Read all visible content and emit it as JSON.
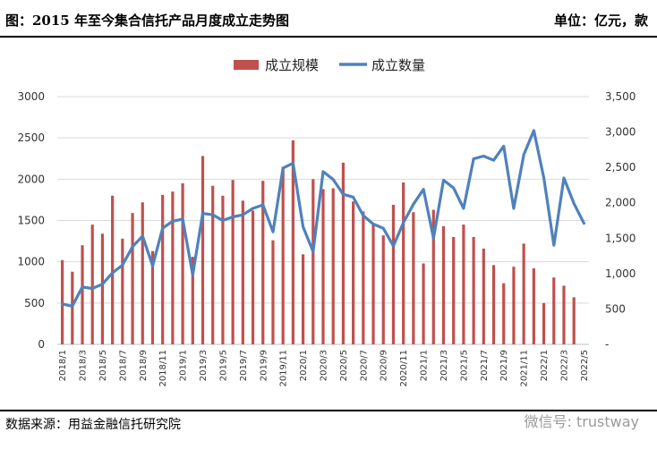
{
  "header": {
    "title": "图：2015 年至今集合信托产品月度成立走势图",
    "unit": "单位：亿元，款"
  },
  "footer": {
    "source": "数据来源：用益金融信托研究院",
    "watermark": "微信号: trustway"
  },
  "colors": {
    "bar": "#c0504d",
    "line": "#4f81bd",
    "grid": "#d9d9d9"
  },
  "chart_data": {
    "type": "bar",
    "legend": [
      "成立规模",
      "成立数量"
    ],
    "legend_position": "top",
    "x": [
      "2018/1",
      "2018/2",
      "2018/3",
      "2018/4",
      "2018/5",
      "2018/6",
      "2018/7",
      "2018/8",
      "2018/9",
      "2018/10",
      "2018/11",
      "2018/12",
      "2019/1",
      "2019/2",
      "2019/3",
      "2019/4",
      "2019/5",
      "2019/6",
      "2019/7",
      "2019/8",
      "2019/9",
      "2019/10",
      "2019/11",
      "2019/12",
      "2020/1",
      "2020/2",
      "2020/3",
      "2020/4",
      "2020/5",
      "2020/6",
      "2020/7",
      "2020/8",
      "2020/9",
      "2020/10",
      "2020/11",
      "2020/12",
      "2021/1",
      "2021/2",
      "2021/3",
      "2021/4",
      "2021/5",
      "2021/6",
      "2021/7",
      "2021/8",
      "2021/9",
      "2021/10",
      "2021/11",
      "2021/12",
      "2022/1",
      "2022/2",
      "2022/3",
      "2022/4",
      "2022/5"
    ],
    "x_tick_labels": [
      "2018/1",
      "2018/3",
      "2018/5",
      "2018/7",
      "2018/9",
      "2018/11",
      "2019/1",
      "2019/3",
      "2019/5",
      "2019/7",
      "2019/9",
      "2019/11",
      "2020/1",
      "2020/3",
      "2020/5",
      "2020/7",
      "2020/9",
      "2020/11",
      "2021/1",
      "2021/3",
      "2021/5",
      "2021/7",
      "2021/9",
      "2021/11",
      "2022/1",
      "2022/3",
      "2022/5"
    ],
    "y_left": {
      "min": 0,
      "max": 3000,
      "ticks": [
        "0",
        "500",
        "1000",
        "1500",
        "2000",
        "2500",
        "3000"
      ]
    },
    "y_right": {
      "min": 0,
      "max": 3500,
      "ticks": [
        "-",
        "500",
        "1,000",
        "1,500",
        "2,000",
        "2,500",
        "3,000",
        "3,500"
      ]
    },
    "grid": true,
    "series": [
      {
        "name": "成立规模",
        "type": "bar",
        "axis": "left",
        "values": [
          1020,
          880,
          1200,
          1450,
          1340,
          1800,
          1280,
          1590,
          1720,
          1130,
          1810,
          1850,
          1950,
          1060,
          2280,
          1920,
          1800,
          1990,
          1740,
          1620,
          1980,
          1260,
          2150,
          2470,
          1090,
          2000,
          1880,
          1890,
          2200,
          1730,
          1610,
          1470,
          1320,
          1690,
          1960,
          1600,
          980,
          1630,
          1430,
          1300,
          1450,
          1300,
          1160,
          960,
          740,
          940,
          1220,
          920,
          500,
          810,
          710,
          570,
          0
        ]
      },
      {
        "name": "成立数量",
        "type": "line",
        "axis": "right",
        "values": [
          570,
          540,
          810,
          790,
          850,
          1010,
          1120,
          1380,
          1530,
          1110,
          1640,
          1740,
          1770,
          980,
          1850,
          1830,
          1750,
          1800,
          1830,
          1920,
          1970,
          1590,
          2490,
          2560,
          1660,
          1310,
          2440,
          2330,
          2120,
          2080,
          1820,
          1700,
          1640,
          1390,
          1720,
          1980,
          2190,
          1500,
          2320,
          2210,
          1920,
          2620,
          2660,
          2600,
          2800,
          1920,
          2680,
          3020,
          2350,
          1400,
          2350,
          1990,
          1710
        ]
      }
    ]
  }
}
